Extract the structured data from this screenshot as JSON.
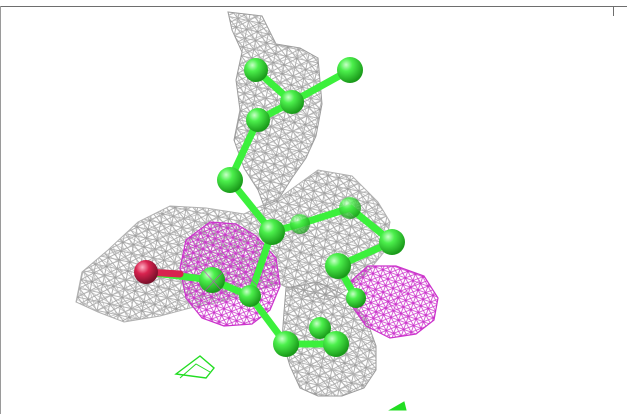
{
  "scene": {
    "kind": "molecular-viewer-render",
    "background": "#ffffff",
    "colors": {
      "carbon": "#3cf03c",
      "oxygen": "#d8234f",
      "density_map": "#a8a8a8",
      "difference_map": "#cc33cc",
      "extra_mesh": "#22dd22",
      "frame": "#6e6e6e"
    },
    "icons": [
      "ball-and-stick-ligand",
      "electron-density-mesh",
      "difference-density-mesh"
    ]
  }
}
